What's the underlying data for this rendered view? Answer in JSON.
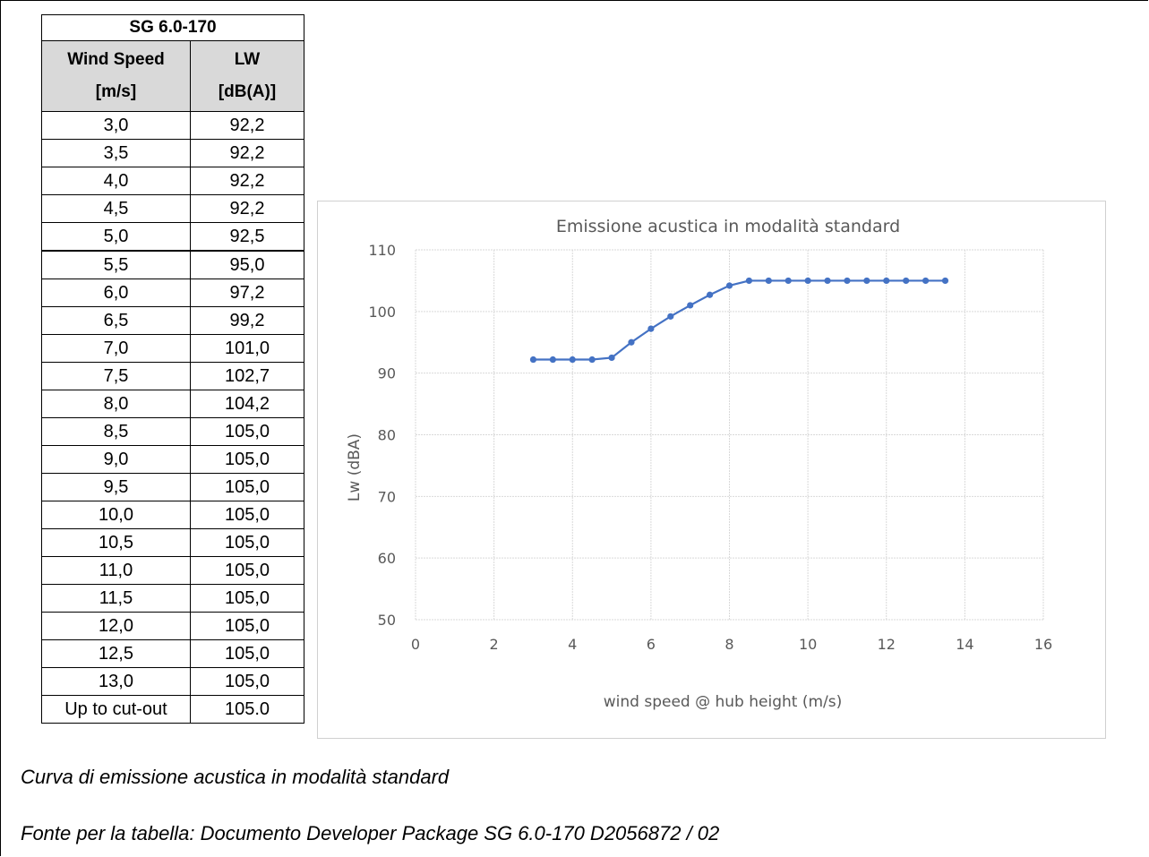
{
  "table": {
    "title": "SG 6.0-170",
    "header": {
      "col1_line1": "Wind Speed",
      "col1_line2": "[m/s]",
      "col2_line1": "LW",
      "col2_line2": "[dB(A)]"
    },
    "rows": [
      [
        "3,0",
        "92,2"
      ],
      [
        "3,5",
        "92,2"
      ],
      [
        "4,0",
        "92,2"
      ],
      [
        "4,5",
        "92,2"
      ],
      [
        "5,0",
        "92,5"
      ],
      [
        "5,5",
        "95,0"
      ],
      [
        "6,0",
        "97,2"
      ],
      [
        "6,5",
        "99,2"
      ],
      [
        "7,0",
        "101,0"
      ],
      [
        "7,5",
        "102,7"
      ],
      [
        "8,0",
        "104,2"
      ],
      [
        "8,5",
        "105,0"
      ],
      [
        "9,0",
        "105,0"
      ],
      [
        "9,5",
        "105,0"
      ],
      [
        "10,0",
        "105,0"
      ],
      [
        "10,5",
        "105,0"
      ],
      [
        "11,0",
        "105,0"
      ],
      [
        "11,5",
        "105,0"
      ],
      [
        "12,0",
        "105,0"
      ],
      [
        "12,5",
        "105,0"
      ],
      [
        "13,0",
        "105,0"
      ],
      [
        "Up to cut-out",
        "105.0"
      ]
    ]
  },
  "chart_data": {
    "type": "line",
    "title": "Emissione acustica in modalità standard",
    "xlabel": "wind speed @ hub height (m/s)",
    "ylabel": "Lw (dBA)",
    "xlim": [
      0,
      16
    ],
    "ylim": [
      50,
      110
    ],
    "xticks": [
      0,
      2,
      4,
      6,
      8,
      10,
      12,
      14,
      16
    ],
    "yticks": [
      50,
      60,
      70,
      80,
      90,
      100,
      110
    ],
    "grid": true,
    "series_color": "#4472c4",
    "series": [
      {
        "x": [
          3.0,
          3.5,
          4.0,
          4.5,
          5.0,
          5.5,
          6.0,
          6.5,
          7.0,
          7.5,
          8.0,
          8.5,
          9.0,
          9.5,
          10.0,
          10.5,
          11.0,
          11.5,
          12.0,
          12.5,
          13.0,
          13.5
        ],
        "y": [
          92.2,
          92.2,
          92.2,
          92.2,
          92.5,
          95.0,
          97.2,
          99.2,
          101.0,
          102.7,
          104.2,
          105.0,
          105.0,
          105.0,
          105.0,
          105.0,
          105.0,
          105.0,
          105.0,
          105.0,
          105.0,
          105.0
        ]
      }
    ]
  },
  "captions": {
    "line1": "Curva di emissione acustica in modalità standard",
    "line2": "Fonte per la tabella: Documento Developer Package SG 6.0-170 D2056872 / 02"
  }
}
